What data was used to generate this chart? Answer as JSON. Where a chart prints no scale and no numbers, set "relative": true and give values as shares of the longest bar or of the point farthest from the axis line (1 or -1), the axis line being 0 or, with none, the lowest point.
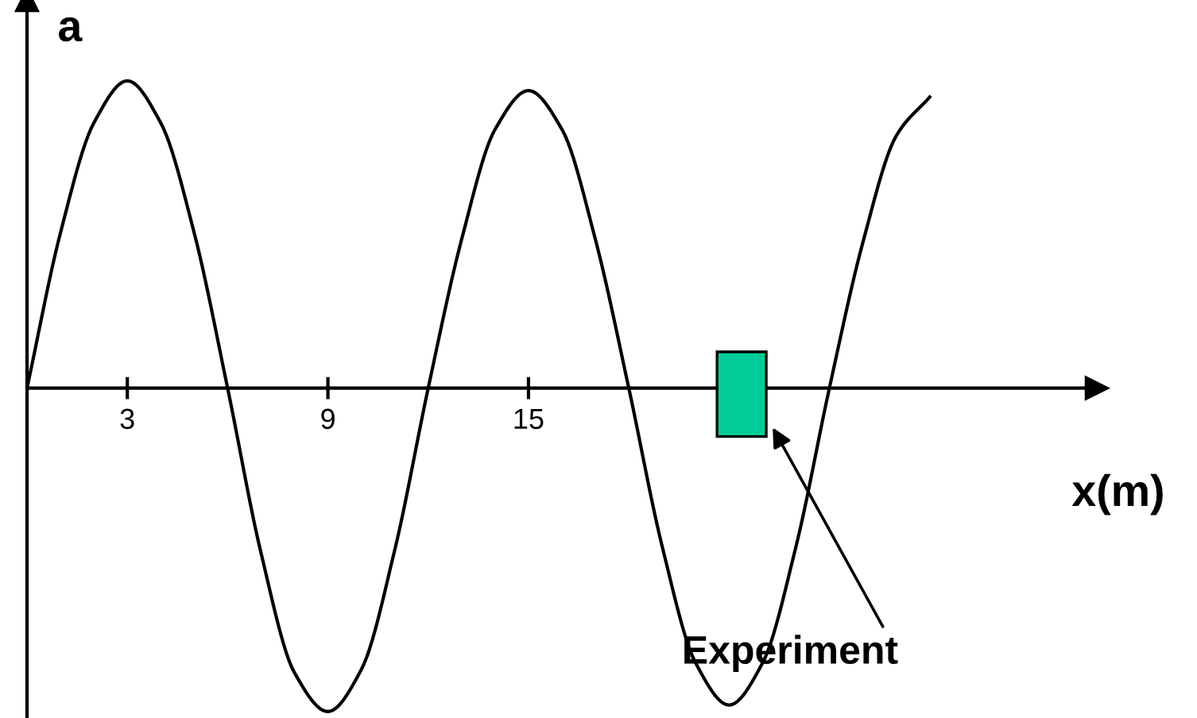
{
  "chart_data": {
    "type": "line",
    "relative": true,
    "xlabel": "x(m)",
    "ylabel": "a",
    "xlim": [
      0,
      32
    ],
    "xticks": [
      3,
      9,
      15
    ],
    "grid": false,
    "marker": "none",
    "line_style": "solid",
    "series": [
      {
        "color": "#000000",
        "x": [
          0,
          1,
          2,
          3,
          4,
          5,
          6,
          7,
          8,
          9,
          10,
          11,
          12,
          13,
          14,
          15,
          16,
          17,
          18,
          19,
          20,
          21,
          22,
          23,
          24,
          25,
          26,
          27
        ],
        "values": [
          0,
          0.48,
          0.82,
          0.95,
          0.82,
          0.48,
          0,
          -0.51,
          -0.88,
          -1.0,
          -0.87,
          -0.5,
          0,
          0.46,
          0.8,
          0.92,
          0.8,
          0.46,
          0,
          -0.49,
          -0.85,
          -0.98,
          -0.85,
          -0.49,
          0,
          0.45,
          0.78,
          0.9
        ]
      }
    ],
    "annotations": [
      "Experiment"
    ]
  }
}
